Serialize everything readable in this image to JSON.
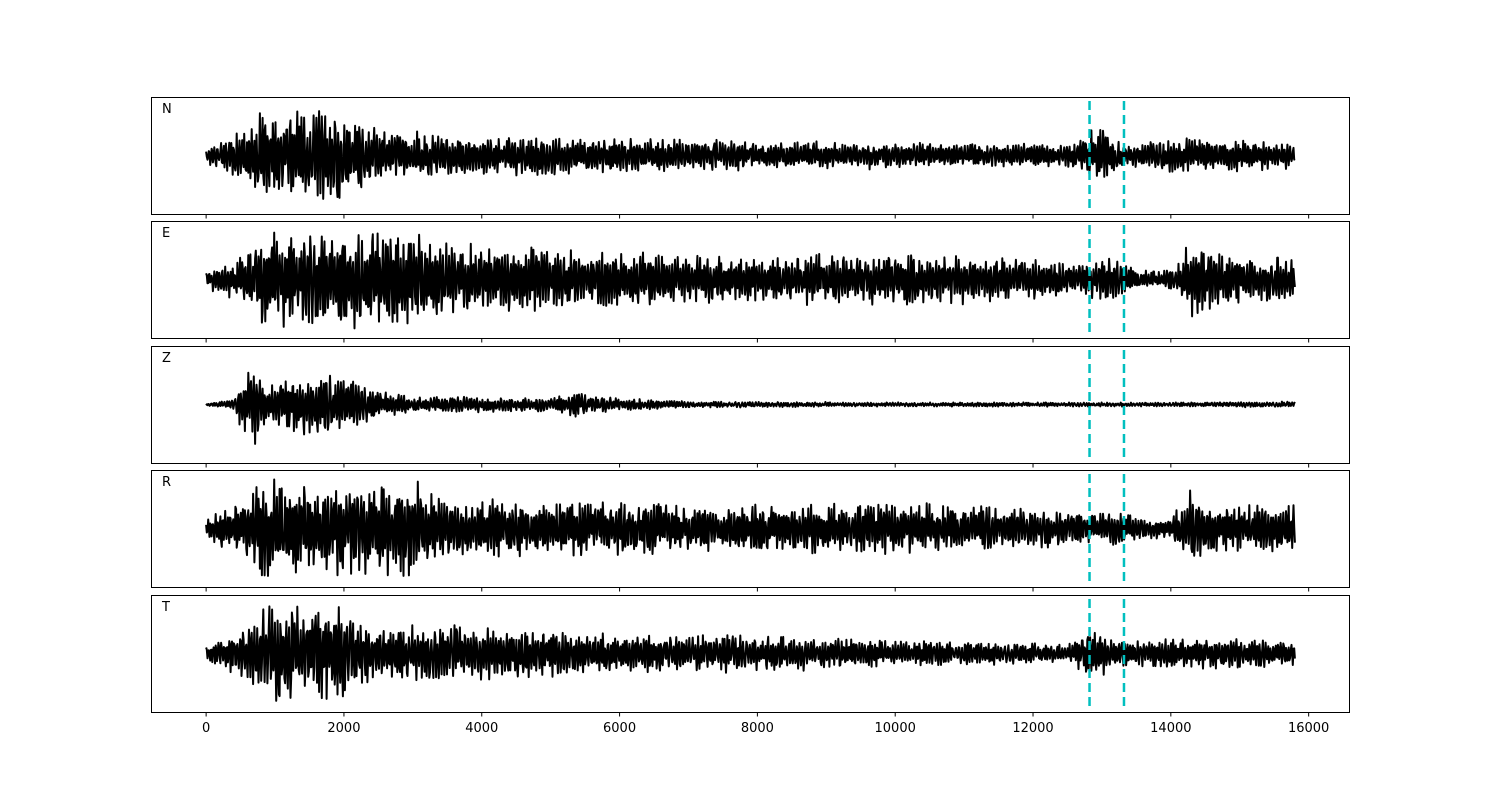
{
  "chart_data": {
    "type": "line",
    "xlim": [
      -800,
      16600
    ],
    "x_ticks": [
      0,
      2000,
      4000,
      6000,
      8000,
      10000,
      12000,
      14000,
      16000
    ],
    "x_tick_labels": [
      "0",
      "2000",
      "4000",
      "6000",
      "8000",
      "10000",
      "12000",
      "14000",
      "16000"
    ],
    "sample_range": [
      0,
      15800
    ],
    "line_color": "#000000",
    "marker_color": "#00bfbf",
    "vertical_markers": [
      12820,
      13320
    ],
    "panels": [
      {
        "label": "N",
        "envelope": [
          [
            0,
            0.15
          ],
          [
            600,
            0.5
          ],
          [
            800,
            0.95
          ],
          [
            1000,
            0.85
          ],
          [
            1800,
            0.95
          ],
          [
            2500,
            0.55
          ],
          [
            3000,
            0.45
          ],
          [
            4500,
            0.4
          ],
          [
            6000,
            0.35
          ],
          [
            8000,
            0.3
          ],
          [
            10000,
            0.25
          ],
          [
            12500,
            0.22
          ],
          [
            12950,
            0.55
          ],
          [
            13300,
            0.25
          ],
          [
            14000,
            0.35
          ],
          [
            15000,
            0.3
          ],
          [
            15800,
            0.25
          ]
        ]
      },
      {
        "label": "E",
        "envelope": [
          [
            0,
            0.15
          ],
          [
            600,
            0.55
          ],
          [
            800,
            0.95
          ],
          [
            1700,
            0.9
          ],
          [
            2800,
            0.95
          ],
          [
            3500,
            0.7
          ],
          [
            5000,
            0.6
          ],
          [
            6500,
            0.5
          ],
          [
            8000,
            0.45
          ],
          [
            10000,
            0.5
          ],
          [
            12000,
            0.4
          ],
          [
            12800,
            0.35
          ],
          [
            13100,
            0.45
          ],
          [
            13500,
            0.2
          ],
          [
            14000,
            0.2
          ],
          [
            14300,
            0.75
          ],
          [
            14700,
            0.5
          ],
          [
            15800,
            0.45
          ]
        ]
      },
      {
        "label": "Z",
        "envelope": [
          [
            0,
            0.02
          ],
          [
            400,
            0.1
          ],
          [
            650,
            0.95
          ],
          [
            900,
            0.35
          ],
          [
            1700,
            0.7
          ],
          [
            2500,
            0.3
          ],
          [
            3000,
            0.15
          ],
          [
            5000,
            0.15
          ],
          [
            5300,
            0.25
          ],
          [
            6000,
            0.12
          ],
          [
            7000,
            0.06
          ],
          [
            10000,
            0.04
          ],
          [
            14000,
            0.04
          ],
          [
            15800,
            0.06
          ]
        ]
      },
      {
        "label": "R",
        "envelope": [
          [
            0,
            0.2
          ],
          [
            600,
            0.6
          ],
          [
            800,
            0.95
          ],
          [
            1700,
            0.9
          ],
          [
            3000,
            0.95
          ],
          [
            3500,
            0.6
          ],
          [
            5000,
            0.55
          ],
          [
            6500,
            0.5
          ],
          [
            8000,
            0.45
          ],
          [
            10000,
            0.5
          ],
          [
            12000,
            0.4
          ],
          [
            12800,
            0.3
          ],
          [
            13100,
            0.4
          ],
          [
            13500,
            0.2
          ],
          [
            14000,
            0.2
          ],
          [
            14300,
            0.8
          ],
          [
            14700,
            0.5
          ],
          [
            15800,
            0.45
          ]
        ]
      },
      {
        "label": "T",
        "envelope": [
          [
            0,
            0.15
          ],
          [
            600,
            0.55
          ],
          [
            800,
            0.9
          ],
          [
            1000,
            0.95
          ],
          [
            1700,
            1.0
          ],
          [
            2500,
            0.55
          ],
          [
            4500,
            0.5
          ],
          [
            6000,
            0.4
          ],
          [
            8000,
            0.35
          ],
          [
            10000,
            0.25
          ],
          [
            12500,
            0.2
          ],
          [
            12900,
            0.5
          ],
          [
            13300,
            0.25
          ],
          [
            14000,
            0.3
          ],
          [
            15000,
            0.3
          ],
          [
            15800,
            0.25
          ]
        ]
      }
    ]
  }
}
